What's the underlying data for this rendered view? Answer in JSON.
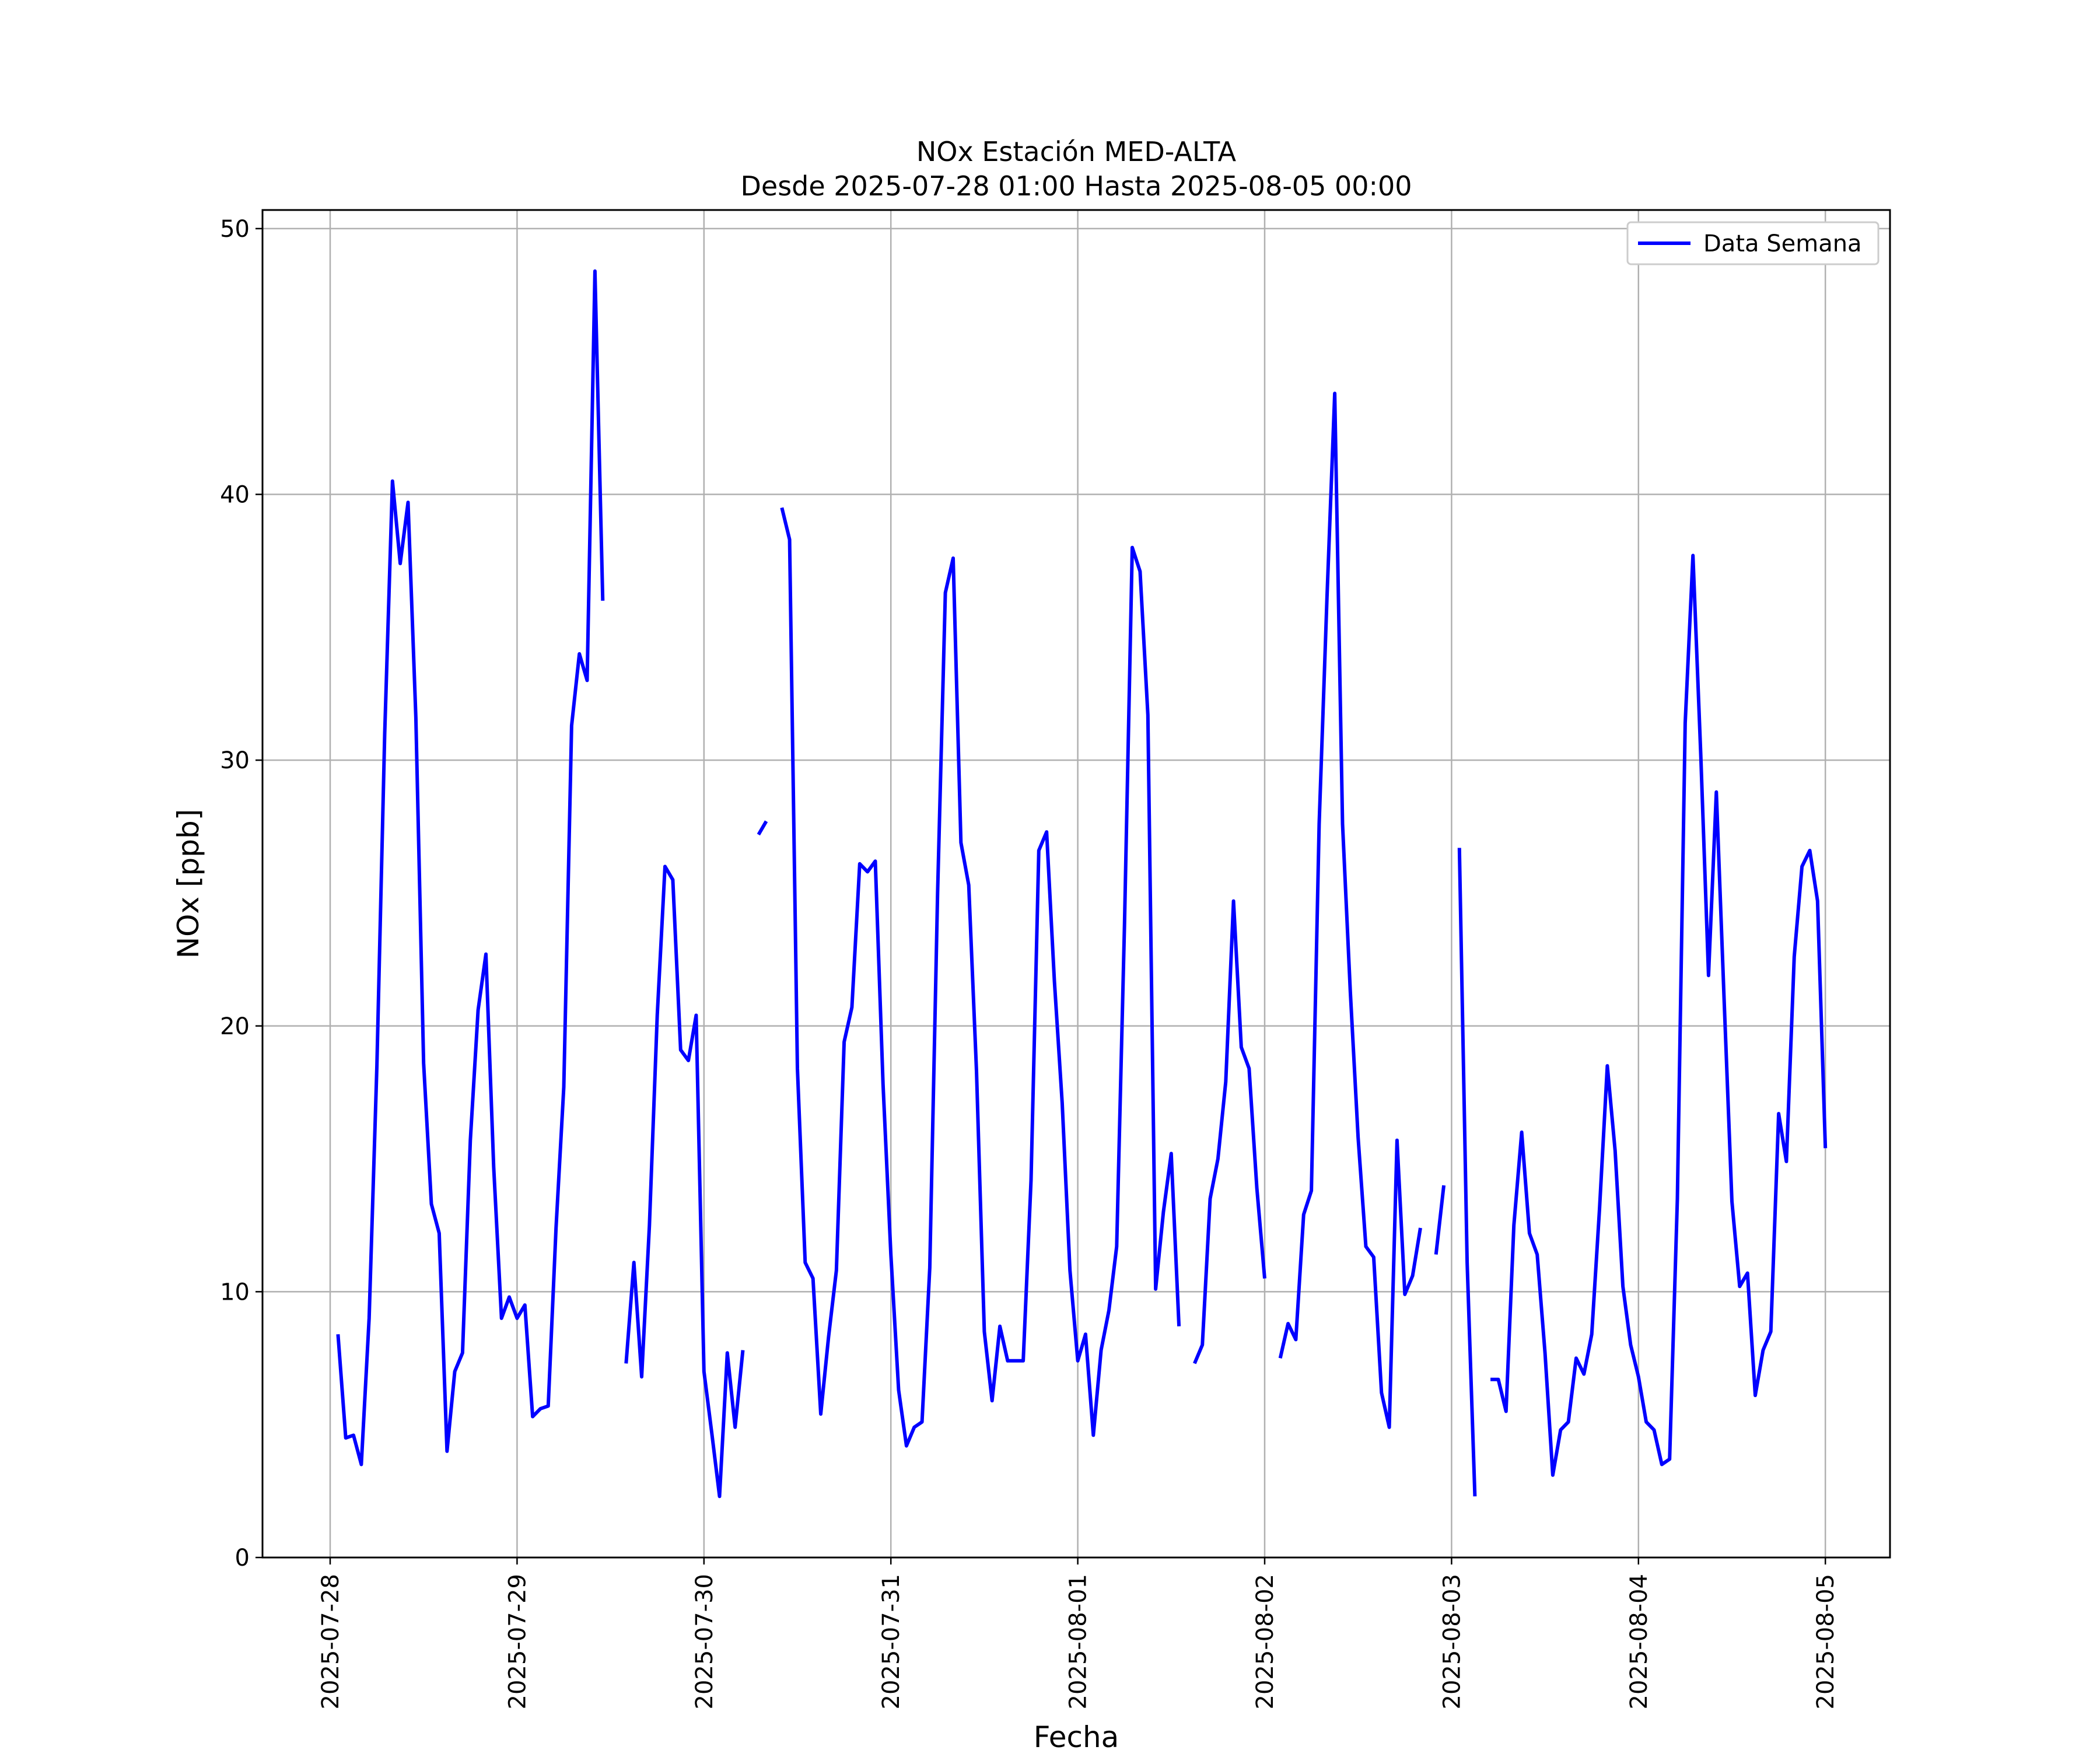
{
  "chart_data": {
    "type": "line",
    "title_line1": "NOx Estación MED-ALTA",
    "title_line2": "Desde 2025-07-28 01:00 Hasta 2025-08-05 00:00",
    "xlabel": "Fecha",
    "ylabel": "NOx [ppb]",
    "ylim": [
      0,
      50.7
    ],
    "yticks": [
      0,
      10,
      20,
      30,
      40,
      50
    ],
    "xticks": [
      "2025-07-28",
      "2025-07-29",
      "2025-07-30",
      "2025-07-31",
      "2025-08-01",
      "2025-08-02",
      "2025-08-03",
      "2025-08-04",
      "2025-08-05"
    ],
    "grid": true,
    "legend_position": "top-right",
    "series": [
      {
        "name": "Data Semana",
        "color": "#0000ff",
        "segments": [
          {
            "start": "2025-07-28 01:00",
            "values": [
              8.4,
              4.5,
              4.6,
              3.5,
              9.0,
              18.5,
              31.0,
              40.5,
              37.4,
              39.7,
              31.6,
              18.6,
              13.3,
              12.2,
              4.0,
              7.0,
              7.7,
              15.7,
              20.6,
              22.7,
              14.7,
              9.0,
              9.8,
              9.0,
              9.5,
              5.3,
              5.6,
              5.7,
              12.4,
              17.7,
              31.3,
              34.0,
              33.0,
              48.4,
              36.0
            ]
          },
          {
            "start": "2025-07-29 14:00",
            "values": [
              7.3,
              11.1,
              6.8,
              12.5,
              20.4,
              26.0,
              25.5,
              19.1,
              18.7,
              20.4,
              7.0,
              4.7,
              2.3,
              7.7,
              4.9,
              7.8
            ]
          },
          {
            "start": "2025-07-30 07:00",
            "values": [
              27.2,
              27.7
            ]
          },
          {
            "start": "2025-07-30 10:00",
            "values": [
              39.5,
              38.3,
              18.4,
              11.1,
              10.5,
              5.4,
              8.3,
              10.8,
              19.4,
              20.7,
              26.1,
              25.8,
              26.2,
              17.8,
              11.4,
              6.3,
              4.2,
              4.9,
              5.1,
              10.9,
              25.0,
              36.3,
              37.6,
              26.9,
              25.3,
              18.3,
              8.5,
              5.9,
              8.7,
              7.4,
              7.4,
              7.4,
              14.2,
              26.6,
              27.3,
              21.7,
              17.1,
              10.8,
              7.4,
              8.4,
              4.6,
              7.8,
              9.3,
              11.7,
              23.8,
              38.0,
              37.1,
              31.7,
              10.1,
              13.0,
              15.2,
              8.7
            ]
          },
          {
            "start": "2025-08-01 15:00",
            "values": [
              7.3,
              8.0,
              13.5,
              15.0,
              17.9,
              24.7,
              19.2,
              18.4,
              13.9,
              10.5
            ]
          },
          {
            "start": "2025-08-02 02:00",
            "values": [
              7.5,
              8.8,
              8.2,
              12.9,
              13.8,
              27.6,
              36.1,
              43.8,
              27.6,
              21.3,
              15.8,
              11.7,
              11.3,
              6.2,
              4.9,
              15.7,
              9.9,
              10.6,
              12.4
            ]
          },
          {
            "start": "2025-08-02 22:00",
            "values": [
              11.4,
              14.0
            ]
          },
          {
            "start": "2025-08-03 01:00",
            "values": [
              26.7,
              11.1,
              2.3
            ]
          },
          {
            "start": "2025-08-03 05:00",
            "values": [
              6.7,
              6.7,
              5.5,
              12.5,
              16.0,
              12.2,
              11.4,
              7.7,
              3.1,
              4.8,
              5.1,
              7.5,
              6.9,
              8.4,
              13.1,
              18.5,
              15.3,
              10.2,
              8.0,
              6.8,
              5.1,
              4.8,
              3.5,
              3.7,
              13.5,
              31.4,
              37.7,
              30.2,
              21.9,
              28.8,
              21.0,
              13.4,
              10.2,
              10.7,
              6.1,
              7.8,
              8.5,
              16.7,
              14.9,
              22.6,
              26.0,
              26.6,
              24.7,
              15.4
            ]
          }
        ]
      }
    ]
  }
}
